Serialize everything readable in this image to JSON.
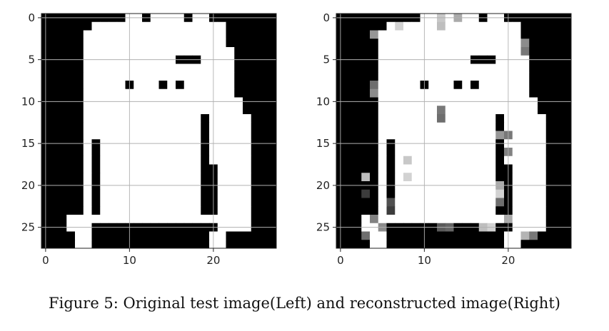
{
  "caption": "Figure 5: Original test image(Left) and reconstructed image(Right)",
  "chart_data": [
    {
      "type": "heatmap",
      "panel": "left",
      "colormap": "gray",
      "grid": true,
      "xlim": [
        -0.5,
        27.5
      ],
      "ylim": [
        27.5,
        -0.5
      ],
      "xticks": [
        0,
        10,
        20
      ],
      "yticks": [
        0,
        5,
        10,
        15,
        20,
        25
      ],
      "rows": [
        "....#######..#####..##.....",
        "......#########################......",
        "......######################......",
        "....####################.....",
        "....####################.....",
        "....#################==###.....",
        "....######################.....",
        "....######################.....",
        "....#####.###..#.#######.....",
        "....######################.....",
        "....#####################.....",
        "....#################.###.....",
        "....#################.####....",
        "....#################.####....",
        "....#################.####....",
        "....###.##########.###....",
        "....###.##########.###....",
        "....###.##########.####....",
        "....###.##########..###....",
        "....###.##########..###....",
        "....###.##########..###....",
        "....###.##########..###....",
        "....###.##########..###....",
        "....###.##########..###....",
        "...####.##########..###....",
        "...###...............###....",
        "....##..................##....",
        "....##..................##...."
      ]
    },
    {
      "type": "heatmap",
      "panel": "right",
      "colormap": "gray",
      "grid": true,
      "xlim": [
        -0.5,
        27.5
      ],
      "ylim": [
        27.5,
        -0.5
      ],
      "xticks": [
        0,
        10,
        20
      ],
      "yticks": [
        0,
        5,
        10,
        15,
        20,
        25
      ]
    }
  ]
}
